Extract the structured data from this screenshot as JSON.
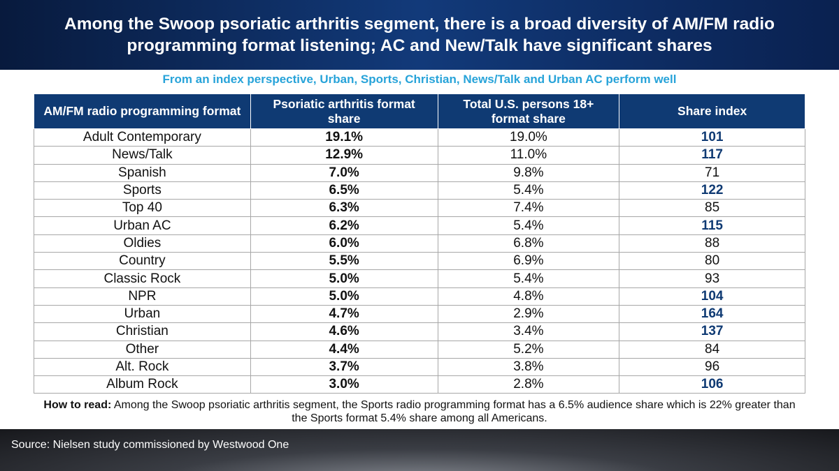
{
  "header": {
    "title": "Among the Swoop psoriatic arthritis segment, there is a broad diversity of AM/FM radio programming format listening; AC and New/Talk have significant shares"
  },
  "subtitle": "From an index perspective, Urban, Sports, Christian, News/Talk and Urban AC perform well",
  "table": {
    "headers": [
      "AM/FM radio programming format",
      "Psoriatic arthritis format share",
      "Total U.S. persons 18+ format share",
      "Share index"
    ],
    "rows": [
      {
        "format": "Adult Contemporary",
        "share": "19.1%",
        "total": "19.0%",
        "index": "101",
        "highlight": true
      },
      {
        "format": "News/Talk",
        "share": "12.9%",
        "total": "11.0%",
        "index": "117",
        "highlight": true
      },
      {
        "format": "Spanish",
        "share": "7.0%",
        "total": "9.8%",
        "index": "71",
        "highlight": false
      },
      {
        "format": "Sports",
        "share": "6.5%",
        "total": "5.4%",
        "index": "122",
        "highlight": true
      },
      {
        "format": "Top 40",
        "share": "6.3%",
        "total": "7.4%",
        "index": "85",
        "highlight": false
      },
      {
        "format": "Urban AC",
        "share": "6.2%",
        "total": "5.4%",
        "index": "115",
        "highlight": true
      },
      {
        "format": "Oldies",
        "share": "6.0%",
        "total": "6.8%",
        "index": "88",
        "highlight": false
      },
      {
        "format": "Country",
        "share": "5.5%",
        "total": "6.9%",
        "index": "80",
        "highlight": false
      },
      {
        "format": "Classic Rock",
        "share": "5.0%",
        "total": "5.4%",
        "index": "93",
        "highlight": false
      },
      {
        "format": "NPR",
        "share": "5.0%",
        "total": "4.8%",
        "index": "104",
        "highlight": true
      },
      {
        "format": "Urban",
        "share": "4.7%",
        "total": "2.9%",
        "index": "164",
        "highlight": true
      },
      {
        "format": "Christian",
        "share": "4.6%",
        "total": "3.4%",
        "index": "137",
        "highlight": true
      },
      {
        "format": "Other",
        "share": "4.4%",
        "total": "5.2%",
        "index": "84",
        "highlight": false
      },
      {
        "format": "Alt. Rock",
        "share": "3.7%",
        "total": "3.8%",
        "index": "96",
        "highlight": false
      },
      {
        "format": "Album Rock",
        "share": "3.0%",
        "total": "2.8%",
        "index": "106",
        "highlight": true
      }
    ]
  },
  "how_to_read": {
    "label": "How to read:",
    "text": " Among the Swoop psoriatic arthritis segment, the Sports radio programming format has a 6.5% audience share which is 22% greater than the Sports format 5.4% share among all Americans."
  },
  "footer": {
    "source": "Source: Nielsen study commissioned by Westwood One"
  },
  "colors": {
    "header_bg": "#123a7a",
    "subtitle": "#27a3d9",
    "table_header_bg": "#0f3a73",
    "index_highlight": "#0f3a73"
  }
}
